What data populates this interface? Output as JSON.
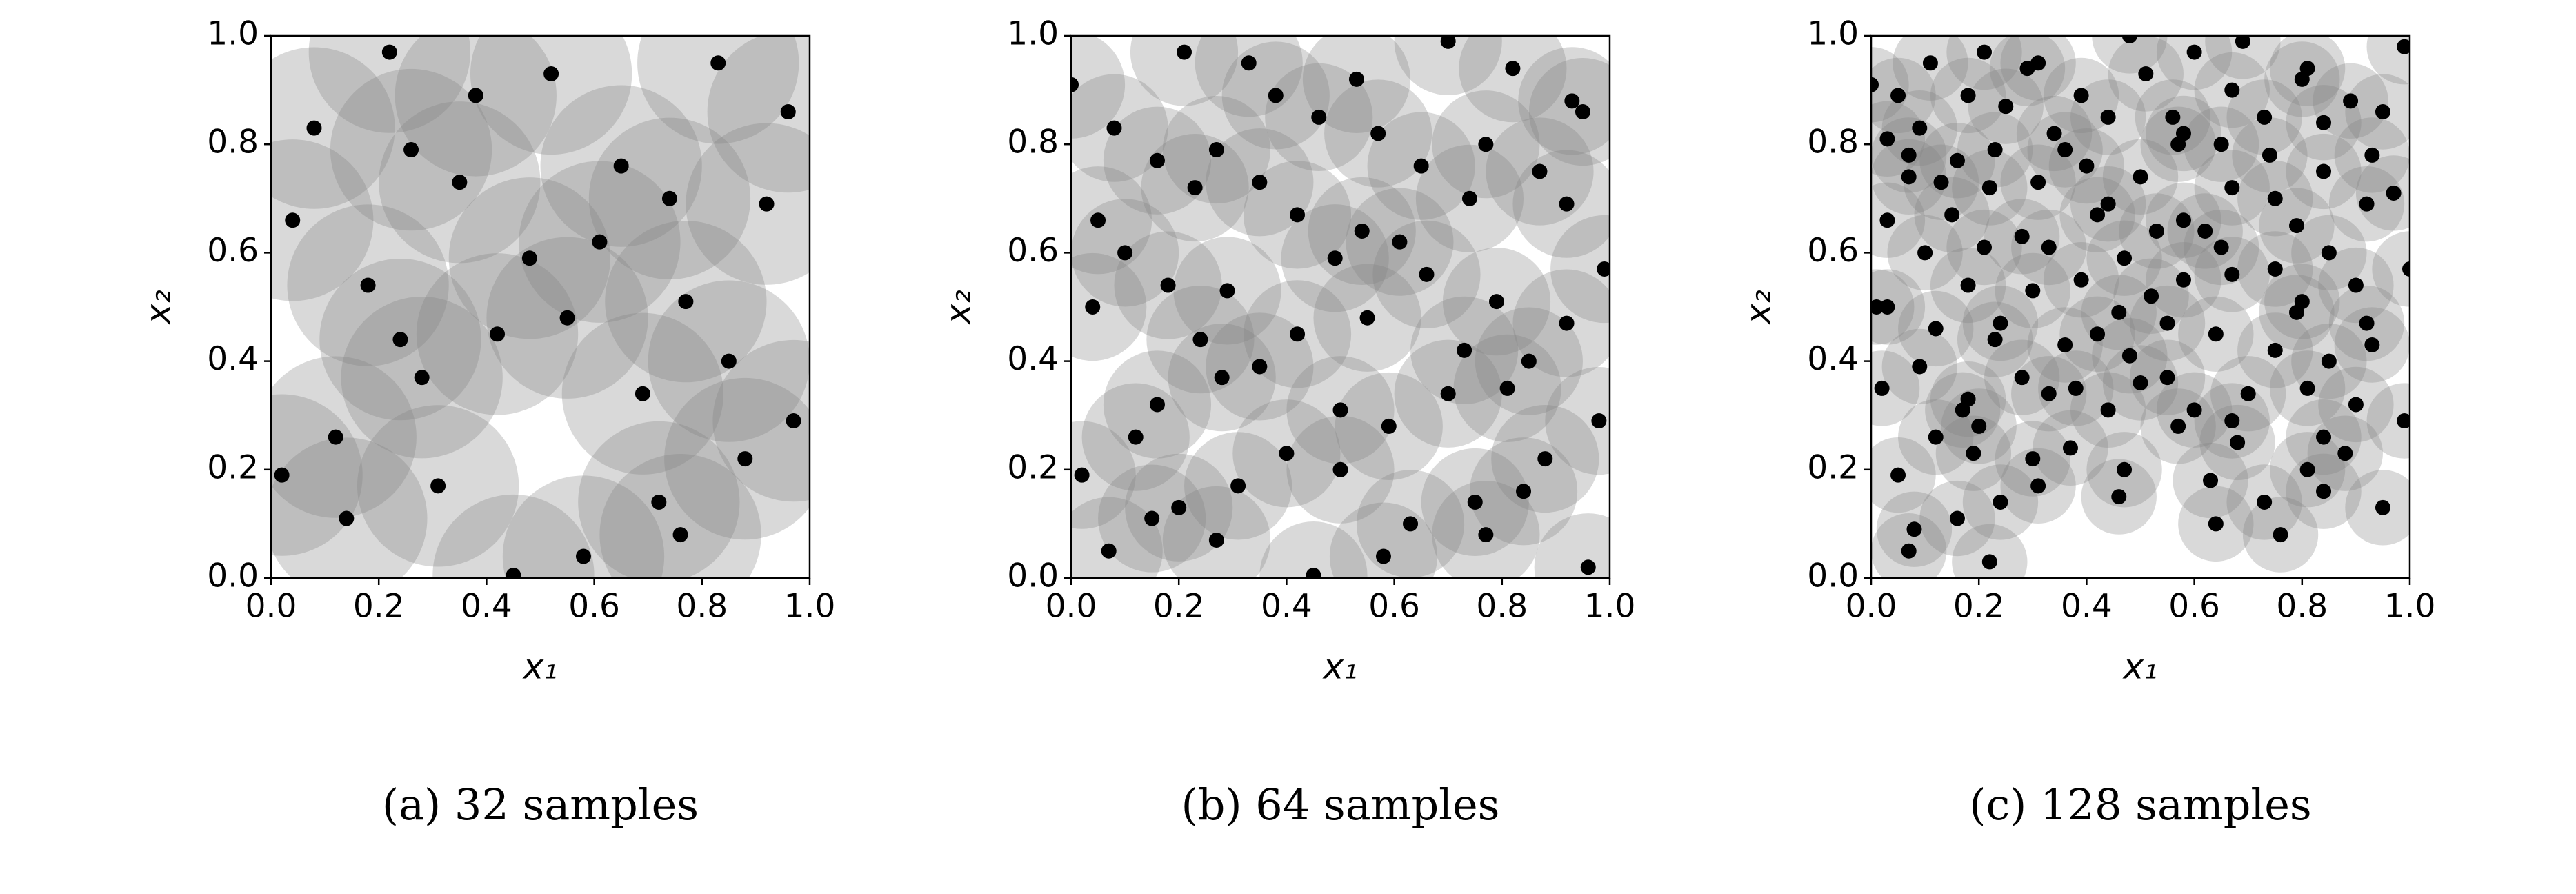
{
  "chart_data": [
    {
      "type": "scatter",
      "caption": "(a) 32 samples",
      "xlabel": "x₁",
      "ylabel": "x₂",
      "radius": 0.15,
      "point_color": "#000000",
      "circle_color": "#808080",
      "xlim": [
        0,
        1
      ],
      "ylim": [
        0,
        1
      ],
      "xticks": [
        {
          "value": 0,
          "label": "0.0"
        },
        {
          "value": 0.2,
          "label": "0.2"
        },
        {
          "value": 0.4,
          "label": "0.4"
        },
        {
          "value": 0.6,
          "label": "0.6"
        },
        {
          "value": 0.8,
          "label": "0.8"
        },
        {
          "value": 1,
          "label": "1.0"
        }
      ],
      "yticks": [
        {
          "value": 0,
          "label": "0.0"
        },
        {
          "value": 0.2,
          "label": "0.2"
        },
        {
          "value": 0.4,
          "label": "0.4"
        },
        {
          "value": 0.6,
          "label": "0.6"
        },
        {
          "value": 0.8,
          "label": "0.8"
        },
        {
          "value": 1,
          "label": "1.0"
        }
      ],
      "x": [
        0.22,
        0.52,
        0.83,
        0.96,
        0.08,
        0.26,
        0.38,
        0.35,
        0.65,
        0.74,
        0.04,
        0.92,
        0.61,
        0.48,
        0.18,
        0.55,
        0.77,
        0.24,
        0.42,
        0.28,
        0.69,
        0.85,
        0.02,
        0.12,
        0.31,
        0.88,
        0.97,
        0.14,
        0.72,
        0.76,
        0.45,
        0.58
      ],
      "y": [
        0.97,
        0.93,
        0.95,
        0.86,
        0.83,
        0.79,
        0.89,
        0.73,
        0.76,
        0.7,
        0.66,
        0.69,
        0.62,
        0.59,
        0.54,
        0.48,
        0.51,
        0.44,
        0.45,
        0.37,
        0.34,
        0.4,
        0.19,
        0.26,
        0.17,
        0.22,
        0.29,
        0.11,
        0.14,
        0.08,
        0.005,
        0.04
      ]
    },
    {
      "type": "scatter",
      "caption": "(b) 64 samples",
      "xlabel": "x₁",
      "ylabel": "x₂",
      "radius": 0.1,
      "point_color": "#000000",
      "circle_color": "#808080",
      "xlim": [
        0,
        1
      ],
      "ylim": [
        0,
        1
      ],
      "xticks": [
        {
          "value": 0,
          "label": "0.0"
        },
        {
          "value": 0.2,
          "label": "0.2"
        },
        {
          "value": 0.4,
          "label": "0.4"
        },
        {
          "value": 0.6,
          "label": "0.6"
        },
        {
          "value": 0.8,
          "label": "0.8"
        },
        {
          "value": 1,
          "label": "1.0"
        }
      ],
      "yticks": [
        {
          "value": 0,
          "label": "0.0"
        },
        {
          "value": 0.2,
          "label": "0.2"
        },
        {
          "value": 0.4,
          "label": "0.4"
        },
        {
          "value": 0.6,
          "label": "0.6"
        },
        {
          "value": 0.8,
          "label": "0.8"
        },
        {
          "value": 1,
          "label": "1.0"
        }
      ],
      "x": [
        0,
        0.21,
        0.33,
        0.7,
        0.38,
        0.46,
        0.53,
        0.82,
        0.93,
        0.95,
        0.08,
        0.27,
        0.57,
        0.77,
        0.16,
        0.65,
        0.23,
        0.35,
        0.87,
        0.74,
        0.42,
        0.92,
        0.05,
        0.1,
        0.54,
        0.61,
        0.49,
        0.99,
        0.66,
        0.18,
        0.29,
        0.04,
        0.79,
        0.55,
        0.92,
        0.24,
        0.42,
        0.73,
        0.85,
        0.35,
        0.28,
        0.81,
        0.7,
        0.16,
        0.5,
        0.59,
        0.98,
        0.12,
        0.4,
        0.88,
        0.02,
        0.5,
        0.31,
        0.84,
        0.75,
        0.15,
        0.2,
        0.63,
        0.77,
        0.07,
        0.27,
        0.58,
        0.45,
        0.96
      ],
      "y": [
        0.91,
        0.97,
        0.95,
        0.99,
        0.89,
        0.85,
        0.92,
        0.94,
        0.88,
        0.86,
        0.83,
        0.79,
        0.82,
        0.8,
        0.77,
        0.76,
        0.72,
        0.73,
        0.75,
        0.7,
        0.67,
        0.69,
        0.66,
        0.6,
        0.64,
        0.62,
        0.59,
        0.57,
        0.56,
        0.54,
        0.53,
        0.5,
        0.51,
        0.48,
        0.47,
        0.44,
        0.45,
        0.42,
        0.4,
        0.39,
        0.37,
        0.35,
        0.34,
        0.32,
        0.31,
        0.28,
        0.29,
        0.26,
        0.23,
        0.22,
        0.19,
        0.2,
        0.17,
        0.16,
        0.14,
        0.11,
        0.13,
        0.1,
        0.08,
        0.05,
        0.07,
        0.04,
        0.005,
        0.02
      ]
    },
    {
      "type": "scatter",
      "caption": "(c) 128 samples",
      "xlabel": "x₁",
      "ylabel": "x₂",
      "radius": 0.07,
      "point_color": "#000000",
      "circle_color": "#808080",
      "xlim": [
        0,
        1
      ],
      "ylim": [
        0,
        1
      ],
      "xticks": [
        {
          "value": 0,
          "label": "0.0"
        },
        {
          "value": 0.2,
          "label": "0.2"
        },
        {
          "value": 0.4,
          "label": "0.4"
        },
        {
          "value": 0.6,
          "label": "0.6"
        },
        {
          "value": 0.8,
          "label": "0.8"
        },
        {
          "value": 1,
          "label": "1.0"
        }
      ],
      "yticks": [
        {
          "value": 0,
          "label": "0.0"
        },
        {
          "value": 0.2,
          "label": "0.2"
        },
        {
          "value": 0.4,
          "label": "0.4"
        },
        {
          "value": 0.6,
          "label": "0.6"
        },
        {
          "value": 0.8,
          "label": "0.8"
        },
        {
          "value": 1,
          "label": "1.0"
        }
      ],
      "x": [
        0,
        0.11,
        0.21,
        0.29,
        0.31,
        0.48,
        0.51,
        0.6,
        0.69,
        0.81,
        0.99,
        0.05,
        0.09,
        0.03,
        0.18,
        0.25,
        0.39,
        0.44,
        0.56,
        0.67,
        0.73,
        0.8,
        0.89,
        0.95,
        0.84,
        0.34,
        0.57,
        0.07,
        0.16,
        0.23,
        0.36,
        0.58,
        0.65,
        0.74,
        0.93,
        0.07,
        0.13,
        0.22,
        0.31,
        0.4,
        0.5,
        0.67,
        0.84,
        0.97,
        0.03,
        0.15,
        0.44,
        0.42,
        0.58,
        0.75,
        0.92,
        0.53,
        0.28,
        0.33,
        0.62,
        0.79,
        0.1,
        0.21,
        0.47,
        0.65,
        0.85,
        1.0,
        0.39,
        0.18,
        0.67,
        0.3,
        0.58,
        0.75,
        0.9,
        0.01,
        0.03,
        0.24,
        0.52,
        0.79,
        0.8,
        0.46,
        0.12,
        0.55,
        0.64,
        0.42,
        0.92,
        0.93,
        0.75,
        0.23,
        0.36,
        0.09,
        0.48,
        0.85,
        0.28,
        0.55,
        0.02,
        0.18,
        0.38,
        0.5,
        0.7,
        0.81,
        0.33,
        0.6,
        0.9,
        0.17,
        0.67,
        0.44,
        0.99,
        0.12,
        0.2,
        0.57,
        0.68,
        0.84,
        0.37,
        0.88,
        0.19,
        0.3,
        0.47,
        0.05,
        0.81,
        0.31,
        0.63,
        0.84,
        0.46,
        0.73,
        0.24,
        0.08,
        0.16,
        0.95,
        0.64,
        0.22,
        0.07,
        0.76
      ],
      "y": [
        0.91,
        0.95,
        0.97,
        0.94,
        0.95,
        1.0,
        0.93,
        0.97,
        0.99,
        0.94,
        0.98,
        0.89,
        0.83,
        0.81,
        0.89,
        0.87,
        0.89,
        0.85,
        0.85,
        0.9,
        0.85,
        0.92,
        0.88,
        0.86,
        0.84,
        0.82,
        0.8,
        0.78,
        0.77,
        0.79,
        0.79,
        0.82,
        0.8,
        0.78,
        0.78,
        0.74,
        0.73,
        0.72,
        0.73,
        0.76,
        0.74,
        0.72,
        0.75,
        0.71,
        0.66,
        0.67,
        0.69,
        0.67,
        0.66,
        0.7,
        0.69,
        0.64,
        0.63,
        0.61,
        0.64,
        0.65,
        0.6,
        0.61,
        0.59,
        0.61,
        0.6,
        0.57,
        0.55,
        0.54,
        0.56,
        0.53,
        0.55,
        0.57,
        0.54,
        0.5,
        0.5,
        0.47,
        0.52,
        0.49,
        0.51,
        0.49,
        0.46,
        0.47,
        0.45,
        0.45,
        0.47,
        0.43,
        0.42,
        0.44,
        0.43,
        0.39,
        0.41,
        0.4,
        0.37,
        0.37,
        0.35,
        0.33,
        0.35,
        0.36,
        0.34,
        0.35,
        0.34,
        0.31,
        0.32,
        0.31,
        0.29,
        0.31,
        0.29,
        0.26,
        0.28,
        0.28,
        0.25,
        0.26,
        0.24,
        0.23,
        0.23,
        0.22,
        0.2,
        0.19,
        0.2,
        0.17,
        0.18,
        0.16,
        0.15,
        0.14,
        0.14,
        0.09,
        0.11,
        0.13,
        0.1,
        0.03,
        0.05,
        0.08
      ]
    }
  ]
}
